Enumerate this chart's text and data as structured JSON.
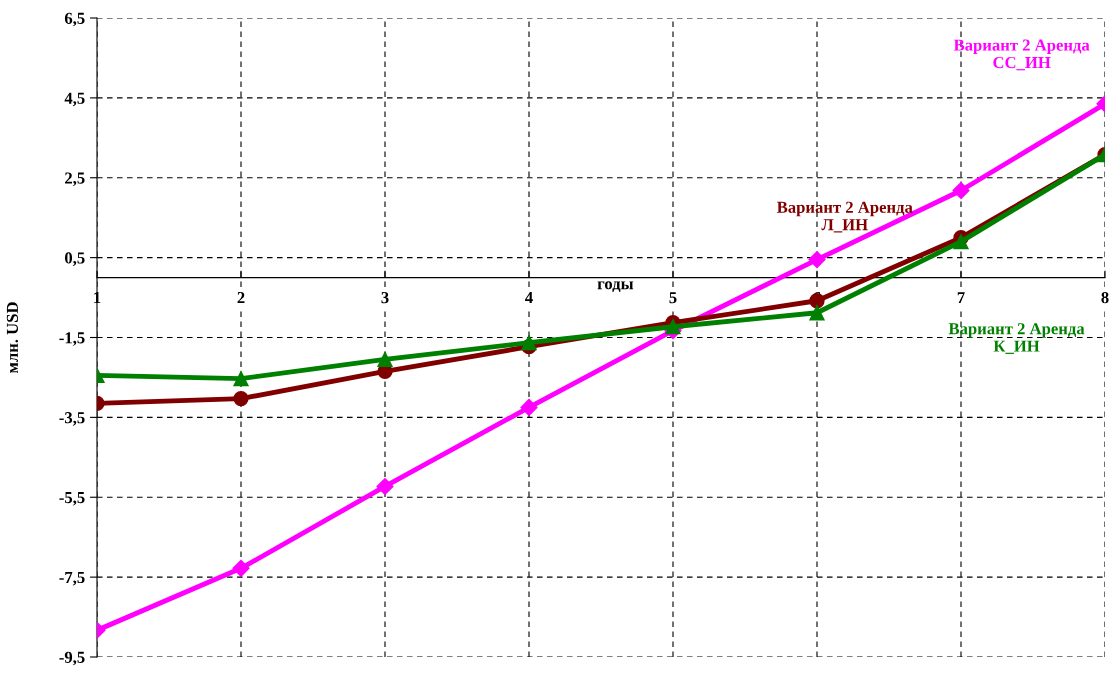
{
  "chart_data": {
    "type": "line",
    "xlabel": "годы",
    "ylabel": "млн. USD",
    "x": [
      1,
      2,
      3,
      4,
      5,
      6,
      7,
      8
    ],
    "xlim": [
      1,
      8
    ],
    "xticks": [
      1,
      2,
      3,
      4,
      5,
      6,
      7,
      8
    ],
    "ylim": [
      -9.5,
      6.5
    ],
    "yticks": [
      {
        "value": -9.5,
        "label": "-9,5"
      },
      {
        "value": -7.5,
        "label": "-7,5"
      },
      {
        "value": -5.5,
        "label": "-5,5"
      },
      {
        "value": -3.5,
        "label": "-3,5"
      },
      {
        "value": -1.5,
        "label": "-1,5"
      },
      {
        "value": 0.5,
        "label": "0,5"
      },
      {
        "value": 2.5,
        "label": "2,5"
      },
      {
        "value": 4.5,
        "label": "4,5"
      },
      {
        "value": 6.5,
        "label": "6,5"
      }
    ],
    "grid": true,
    "legend": false,
    "line_style": "solid",
    "series": [
      {
        "name": "Вариант 2 Аренда\nСС_ИН",
        "color": "#ff00ff",
        "marker": "diamond",
        "values": [
          -8.83,
          -7.28,
          -5.23,
          -3.25,
          -1.33,
          0.45,
          2.18,
          4.35
        ]
      },
      {
        "name": "Вариант 2 Аренда\nЛ_ИН",
        "color": "#800000",
        "marker": "circle",
        "values": [
          -3.15,
          -3.03,
          -2.35,
          -1.73,
          -1.13,
          -0.58,
          1.0,
          3.08
        ]
      },
      {
        "name": "Вариант 2 Аренда\nК_ИН",
        "color": "#008000",
        "marker": "triangle",
        "values": [
          -2.45,
          -2.53,
          -2.05,
          -1.63,
          -1.23,
          -0.88,
          0.9,
          3.08
        ]
      }
    ]
  }
}
